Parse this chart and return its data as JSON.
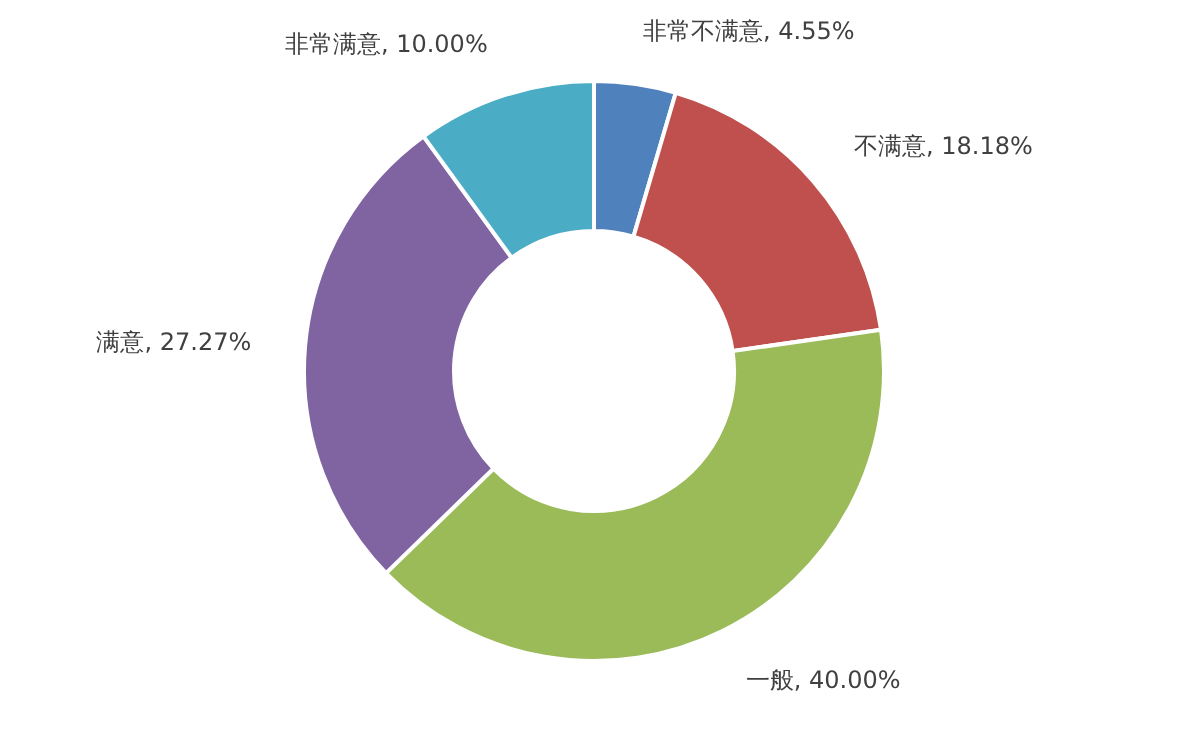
{
  "chart_data": {
    "type": "donut",
    "categories": [
      "非常不满意",
      "不满意",
      "一般",
      "满意",
      "非常满意"
    ],
    "values": [
      4.55,
      18.18,
      40.0,
      27.27,
      10.0
    ],
    "value_labels": [
      "4.55%",
      "18.18%",
      "40.00%",
      "27.27%",
      "10.00%"
    ],
    "colors": [
      "#4f81bd",
      "#c0504d",
      "#9bbb59",
      "#8064a2",
      "#4bacc6"
    ]
  }
}
